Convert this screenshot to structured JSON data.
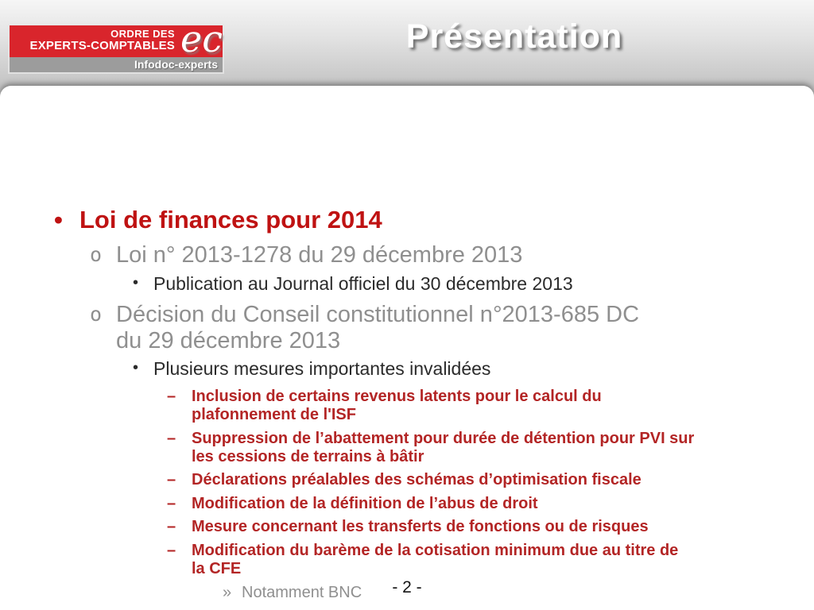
{
  "header": {
    "title": "Présentation",
    "logo": {
      "line1": "ORDRE DES",
      "line2": "EXPERTS-COMPTABLES",
      "script_glyph": "ec",
      "subtitle": "Infodoc-experts"
    }
  },
  "slide": {
    "items": [
      {
        "level": 1,
        "bullet": "•",
        "text": "Loi de finances pour 2014"
      },
      {
        "level": 2,
        "bullet": "o",
        "text": "Loi n° 2013-1278 du 29 décembre 2013"
      },
      {
        "level": 3,
        "bullet": "•",
        "text": "Publication au Journal officiel du 30 décembre 2013"
      },
      {
        "level": 2,
        "bullet": "o",
        "text": "Décision du Conseil constitutionnel n°2013-685 DC\ndu 29 décembre 2013"
      },
      {
        "level": 3,
        "bullet": "•",
        "text": "Plusieurs mesures importantes invalidées"
      },
      {
        "level": 4,
        "bullet": "–",
        "text": "Inclusion de certains revenus latents pour le calcul du\nplafonnement de l'ISF"
      },
      {
        "level": 4,
        "bullet": "–",
        "text": "Suppression de l’abattement pour durée de détention pour PVI sur\nles cessions de terrains à bâtir"
      },
      {
        "level": 4,
        "bullet": "–",
        "text": "Déclarations préalables des schémas d’optimisation fiscale"
      },
      {
        "level": 4,
        "bullet": "–",
        "text": "Modification de la définition de l’abus de droit"
      },
      {
        "level": 4,
        "bullet": "–",
        "text": "Mesure concernant les transferts de fonctions ou de risques"
      },
      {
        "level": 4,
        "bullet": "–",
        "text": "Modification du barème de la cotisation minimum due au titre de\nla CFE"
      },
      {
        "level": 5,
        "bullet": "»",
        "text": "Notamment BNC"
      }
    ],
    "page_number": "- 2 -"
  },
  "colors": {
    "logo_red": "#d9252c",
    "level1_red": "#bf1212",
    "detail_red": "#b32525",
    "gray_text": "#8f8f8f",
    "dark_text": "#2b2b2b"
  }
}
